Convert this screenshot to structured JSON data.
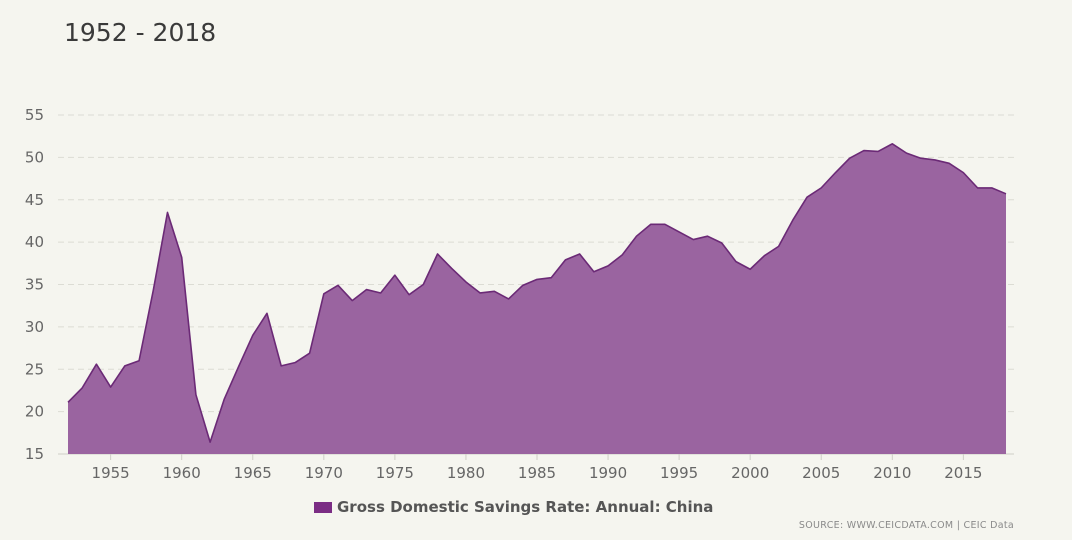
{
  "chart_title": "1952 - 2018",
  "legend": {
    "label": "Gross Domestic Savings Rate: Annual: China"
  },
  "source": "SOURCE: WWW.CEICDATA.COM | CEIC Data",
  "colors": {
    "area_fill": "#9a64a0",
    "area_stroke": "#6b2a76",
    "legend_swatch": "#7b2d84",
    "grid": "#dcdcd4",
    "axis": "#cfcfc7"
  },
  "chart_data": {
    "type": "area",
    "title": "1952 - 2018",
    "xlabel": "",
    "ylabel": "",
    "ylim": [
      15,
      55
    ],
    "xlim": [
      1952,
      2018
    ],
    "yticks": [
      15,
      20,
      25,
      30,
      35,
      40,
      45,
      50,
      55
    ],
    "xticks": [
      1955,
      1960,
      1965,
      1970,
      1975,
      1980,
      1985,
      1990,
      1995,
      2000,
      2005,
      2010,
      2015
    ],
    "grid": true,
    "legend_position": "bottom-center",
    "series": [
      {
        "name": "Gross Domestic Savings Rate: Annual: China",
        "x": [
          1952,
          1953,
          1954,
          1955,
          1956,
          1957,
          1958,
          1959,
          1960,
          1961,
          1962,
          1963,
          1964,
          1965,
          1966,
          1967,
          1968,
          1969,
          1970,
          1971,
          1972,
          1973,
          1974,
          1975,
          1976,
          1977,
          1978,
          1979,
          1980,
          1981,
          1982,
          1983,
          1984,
          1985,
          1986,
          1987,
          1988,
          1989,
          1990,
          1991,
          1992,
          1993,
          1994,
          1995,
          1996,
          1997,
          1998,
          1999,
          2000,
          2001,
          2002,
          2003,
          2004,
          2005,
          2006,
          2007,
          2008,
          2009,
          2010,
          2011,
          2012,
          2013,
          2014,
          2015,
          2016,
          2017,
          2018
        ],
        "values": [
          21.1,
          22.8,
          25.6,
          22.9,
          25.4,
          26.0,
          34.3,
          43.5,
          38.2,
          22.0,
          16.4,
          21.5,
          25.3,
          29.0,
          31.6,
          25.4,
          25.8,
          26.9,
          33.9,
          34.9,
          33.1,
          34.4,
          34.0,
          36.1,
          33.8,
          35.0,
          38.6,
          36.9,
          35.3,
          34.0,
          34.2,
          33.3,
          34.9,
          35.6,
          35.8,
          37.9,
          38.6,
          36.5,
          37.2,
          38.5,
          40.7,
          42.1,
          42.1,
          41.2,
          40.3,
          40.7,
          39.9,
          37.7,
          36.8,
          38.4,
          39.5,
          42.6,
          45.3,
          46.4,
          48.2,
          49.9,
          50.8,
          50.7,
          51.6,
          50.5,
          49.9,
          49.7,
          49.3,
          48.2,
          46.4,
          46.4,
          45.7
        ]
      }
    ]
  }
}
